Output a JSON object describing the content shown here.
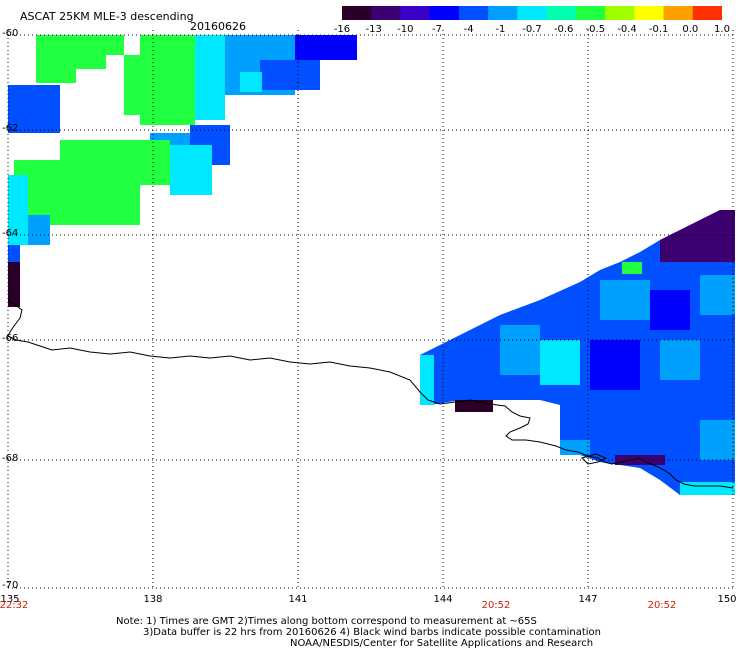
{
  "header": {
    "title": "ASCAT 25KM MLE-3 descending",
    "date": "20160626"
  },
  "colorbar": {
    "labels": [
      "-16",
      "-13",
      "-10",
      "-7",
      "-4",
      "-1",
      "-0.7",
      "-0.6",
      "-0.5",
      "-0.4",
      "-0.1",
      "0.0",
      "1.0"
    ],
    "colors": [
      "#2a0028",
      "#3c0070",
      "#3a00c8",
      "#0000ff",
      "#0050ff",
      "#00a0ff",
      "#00e8ff",
      "#00ffb0",
      "#20ff40",
      "#a0ff00",
      "#ffff00",
      "#ffa000",
      "#ff3000"
    ]
  },
  "axes": {
    "lat_labels": [
      "-60",
      "-62",
      "-64",
      "-66",
      "-68",
      "-70"
    ],
    "lon_labels": [
      "135",
      "138",
      "141",
      "144",
      "147",
      "150"
    ],
    "time_labels": [
      "22:32",
      "20:52",
      "20:52"
    ]
  },
  "notes": {
    "line1": "Note: 1) Times are GMT 2)Times along bottom correspond to measurement at ~65S",
    "line2": "3)Data buffer is 22 hrs from 20160626 4) Black wind barbs indicate possible contamination",
    "line3": "NOAA/NESDIS/Center for Satellite Applications and Research"
  }
}
